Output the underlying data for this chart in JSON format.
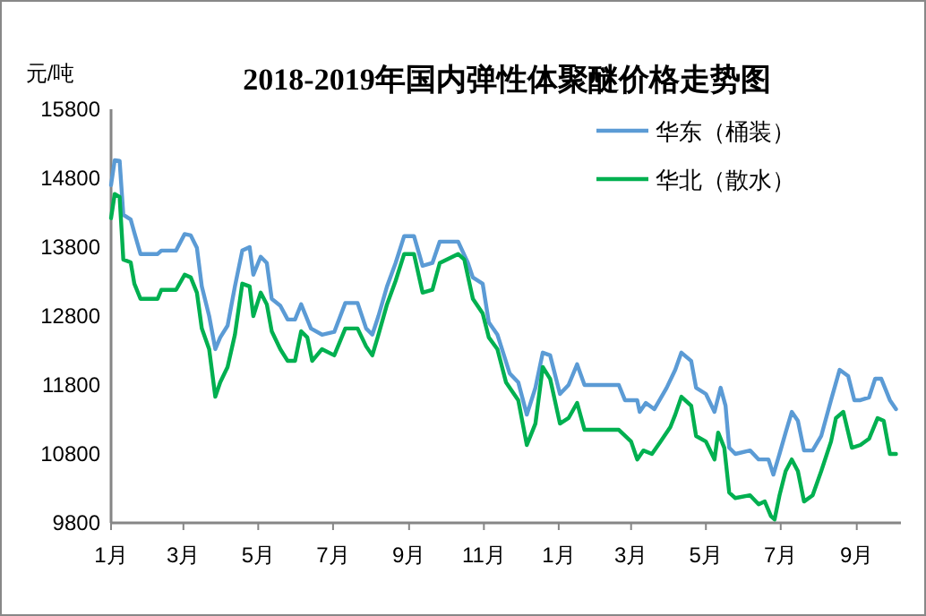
{
  "chart_data": {
    "type": "line",
    "title": "2018-2019年国内弹性体聚醚价格走势图",
    "ylabel": "元/吨",
    "xlim": [
      "2018-01-01",
      "2019-10-07"
    ],
    "xticks": [
      {
        "value": "2018-01-01",
        "label": "1月"
      },
      {
        "value": "2018-03-01",
        "label": "3月"
      },
      {
        "value": "2018-05-01",
        "label": "5月"
      },
      {
        "value": "2018-07-01",
        "label": "7月"
      },
      {
        "value": "2018-09-01",
        "label": "9月"
      },
      {
        "value": "2018-11-01",
        "label": "11月"
      },
      {
        "value": "2019-01-01",
        "label": "1月"
      },
      {
        "value": "2019-03-01",
        "label": "3月"
      },
      {
        "value": "2019-05-01",
        "label": "5月"
      },
      {
        "value": "2019-07-01",
        "label": "7月"
      },
      {
        "value": "2019-09-01",
        "label": "9月"
      }
    ],
    "ylim": [
      9800,
      15800
    ],
    "yticks": [
      9800,
      10800,
      11800,
      12800,
      13800,
      14800,
      15800
    ],
    "grid": false,
    "legend": "top right",
    "marker": "none",
    "line_style": "solid",
    "series": [
      {
        "name": "华东（桶装）",
        "color": "#5b9bd5",
        "x": [
          "2018-01-01",
          "2018-01-04",
          "2018-01-08",
          "2018-01-11",
          "2018-01-17",
          "2018-01-20",
          "2018-01-25",
          "2018-02-08",
          "2018-02-11",
          "2018-02-23",
          "2018-03-02",
          "2018-03-07",
          "2018-03-12",
          "2018-03-16",
          "2018-03-22",
          "2018-03-27",
          "2018-03-31",
          "2018-04-06",
          "2018-04-12",
          "2018-04-18",
          "2018-04-24",
          "2018-04-27",
          "2018-05-03",
          "2018-05-08",
          "2018-05-12",
          "2018-05-19",
          "2018-05-25",
          "2018-05-31",
          "2018-06-05",
          "2018-06-13",
          "2018-06-22",
          "2018-07-02",
          "2018-07-11",
          "2018-07-21",
          "2018-07-28",
          "2018-08-02",
          "2018-08-07",
          "2018-08-14",
          "2018-08-21",
          "2018-08-28",
          "2018-09-05",
          "2018-09-12",
          "2018-09-20",
          "2018-09-26",
          "2018-10-11",
          "2018-10-19",
          "2018-10-23",
          "2018-10-31",
          "2018-11-05",
          "2018-11-12",
          "2018-11-22",
          "2018-11-29",
          "2018-12-06",
          "2018-12-13",
          "2018-12-19",
          "2018-12-25",
          "2019-01-02",
          "2019-01-09",
          "2019-01-16",
          "2019-01-22",
          "2019-02-19",
          "2019-02-24",
          "2019-03-06",
          "2019-03-08",
          "2019-03-13",
          "2019-03-20",
          "2019-03-30",
          "2019-04-06",
          "2019-04-11",
          "2019-04-19",
          "2019-04-23",
          "2019-05-01",
          "2019-05-08",
          "2019-05-13",
          "2019-05-17",
          "2019-05-20",
          "2019-05-25",
          "2019-06-06",
          "2019-06-13",
          "2019-06-21",
          "2019-06-25",
          "2019-06-30",
          "2019-07-05",
          "2019-07-10",
          "2019-07-15",
          "2019-07-20",
          "2019-07-27",
          "2019-08-03",
          "2019-08-11",
          "2019-08-18",
          "2019-08-25",
          "2019-08-30",
          "2019-09-04",
          "2019-09-11",
          "2019-09-16",
          "2019-09-21",
          "2019-09-28",
          "2019-10-03"
        ],
        "values": [
          14700,
          15060,
          15050,
          14270,
          14200,
          14010,
          13700,
          13700,
          13750,
          13750,
          13990,
          13970,
          13790,
          13230,
          12800,
          12320,
          12490,
          12660,
          13230,
          13750,
          13800,
          13400,
          13660,
          13570,
          13050,
          12950,
          12750,
          12750,
          12970,
          12620,
          12530,
          12570,
          12990,
          12990,
          12620,
          12530,
          12800,
          13230,
          13570,
          13960,
          13960,
          13530,
          13570,
          13880,
          13880,
          13570,
          13360,
          13270,
          12710,
          12530,
          11970,
          11840,
          11370,
          11760,
          12270,
          12230,
          11670,
          11800,
          12100,
          11800,
          11800,
          11580,
          11580,
          11410,
          11540,
          11450,
          11760,
          12020,
          12270,
          12150,
          11760,
          11670,
          11410,
          11760,
          11500,
          10890,
          10800,
          10850,
          10720,
          10720,
          10500,
          10800,
          11110,
          11410,
          11280,
          10850,
          10850,
          11060,
          11580,
          12020,
          11930,
          11580,
          11580,
          11620,
          11890,
          11890,
          11580,
          11450
        ]
      },
      {
        "name": "华北（散水）",
        "color": "#00b050",
        "x": [
          "2018-01-01",
          "2018-01-04",
          "2018-01-08",
          "2018-01-11",
          "2018-01-17",
          "2018-01-20",
          "2018-01-25",
          "2018-02-08",
          "2018-02-11",
          "2018-02-23",
          "2018-03-02",
          "2018-03-07",
          "2018-03-12",
          "2018-03-16",
          "2018-03-22",
          "2018-03-27",
          "2018-03-31",
          "2018-04-06",
          "2018-04-12",
          "2018-04-18",
          "2018-04-24",
          "2018-04-27",
          "2018-05-03",
          "2018-05-08",
          "2018-05-12",
          "2018-05-19",
          "2018-05-25",
          "2018-05-31",
          "2018-06-05",
          "2018-06-10",
          "2018-06-14",
          "2018-06-22",
          "2018-07-02",
          "2018-07-11",
          "2018-07-21",
          "2018-07-28",
          "2018-08-02",
          "2018-08-07",
          "2018-08-14",
          "2018-08-21",
          "2018-08-28",
          "2018-09-05",
          "2018-09-12",
          "2018-09-20",
          "2018-09-26",
          "2018-10-11",
          "2018-10-16",
          "2018-10-23",
          "2018-10-31",
          "2018-11-05",
          "2018-11-12",
          "2018-11-19",
          "2018-11-29",
          "2018-12-06",
          "2018-12-13",
          "2018-12-19",
          "2018-12-25",
          "2019-01-02",
          "2019-01-09",
          "2019-01-16",
          "2019-01-22",
          "2019-02-19",
          "2019-03-01",
          "2019-03-06",
          "2019-03-11",
          "2019-03-18",
          "2019-03-25",
          "2019-04-02",
          "2019-04-06",
          "2019-04-11",
          "2019-04-19",
          "2019-04-23",
          "2019-05-01",
          "2019-05-08",
          "2019-05-11",
          "2019-05-16",
          "2019-05-20",
          "2019-05-25",
          "2019-06-06",
          "2019-06-13",
          "2019-06-18",
          "2019-06-23",
          "2019-06-26",
          "2019-06-30",
          "2019-07-05",
          "2019-07-10",
          "2019-07-15",
          "2019-07-20",
          "2019-07-27",
          "2019-08-03",
          "2019-08-11",
          "2019-08-15",
          "2019-08-21",
          "2019-08-28",
          "2019-09-04",
          "2019-09-11",
          "2019-09-18",
          "2019-09-23",
          "2019-09-28",
          "2019-10-03"
        ],
        "values": [
          14220,
          14570,
          14530,
          13620,
          13580,
          13270,
          13050,
          13050,
          13180,
          13180,
          13400,
          13360,
          13140,
          12620,
          12320,
          11630,
          11840,
          12060,
          12530,
          13270,
          13230,
          12800,
          13140,
          12970,
          12580,
          12320,
          12150,
          12150,
          12580,
          12490,
          12150,
          12320,
          12230,
          12620,
          12620,
          12360,
          12230,
          12530,
          12970,
          13310,
          13700,
          13700,
          13140,
          13180,
          13570,
          13700,
          13620,
          13050,
          12840,
          12490,
          12320,
          11840,
          11580,
          10930,
          11240,
          12060,
          11890,
          11240,
          11320,
          11540,
          11150,
          11150,
          10980,
          10720,
          10850,
          10800,
          10980,
          11190,
          11370,
          11630,
          11500,
          11060,
          10980,
          10720,
          11110,
          10890,
          10240,
          10160,
          10200,
          10070,
          10110,
          9900,
          9850,
          10200,
          10550,
          10720,
          10550,
          10110,
          10200,
          10550,
          10980,
          11320,
          11410,
          10890,
          10930,
          11020,
          11320,
          11280,
          10800,
          10800
        ]
      }
    ]
  }
}
